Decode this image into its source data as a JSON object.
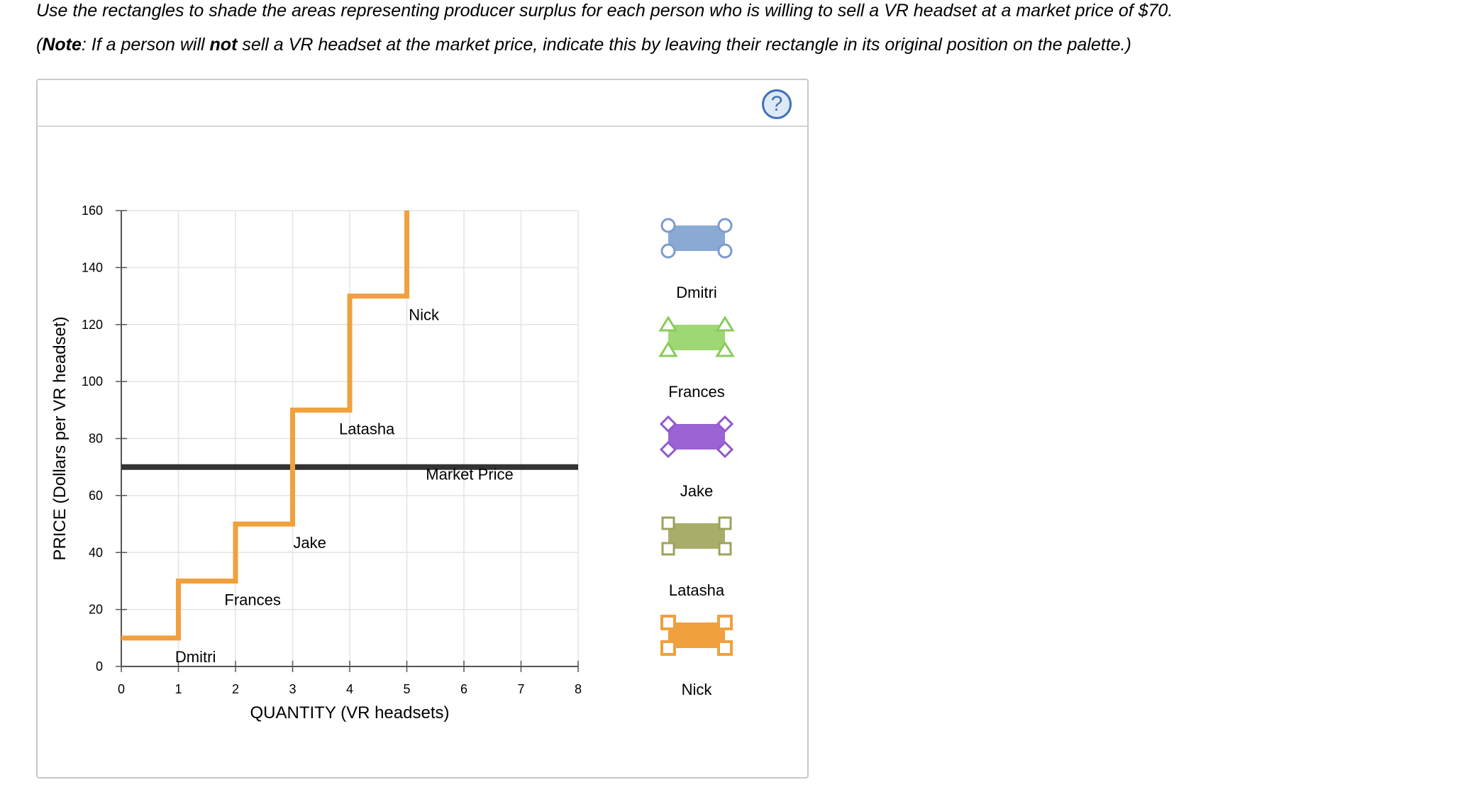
{
  "instructions": {
    "line1": "Use the rectangles to shade the areas representing producer surplus for each person who is willing to sell a VR headset at a market price of $70.",
    "line2_open": "(",
    "line2_note": "Note",
    "line2_mid": ": If a person will ",
    "line2_not": "not",
    "line2_end": " sell a VR headset at the market price, indicate this by leaving their rectangle in its original position on the palette.)"
  },
  "help_button": {
    "label": "?"
  },
  "chart_data": {
    "type": "line",
    "xlabel": "QUANTITY (VR headsets)",
    "ylabel": "PRICE (Dollars per VR headset)",
    "xlim": [
      0,
      8
    ],
    "ylim": [
      0,
      160
    ],
    "x_ticks": [
      0,
      1,
      2,
      3,
      4,
      5,
      6,
      7,
      8
    ],
    "y_ticks": [
      0,
      20,
      40,
      60,
      80,
      100,
      120,
      140,
      160
    ],
    "grid": true,
    "supply_steps": [
      {
        "name": "Dmitri",
        "x_start": 0,
        "x_end": 1,
        "price": 10
      },
      {
        "name": "Frances",
        "x_start": 1,
        "x_end": 2,
        "price": 30
      },
      {
        "name": "Jake",
        "x_start": 2,
        "x_end": 3,
        "price": 50
      },
      {
        "name": "Latasha",
        "x_start": 3,
        "x_end": 4,
        "price": 90
      },
      {
        "name": "Nick",
        "x_start": 4,
        "x_end": 5,
        "price": 130
      }
    ],
    "supply_final_vertical": {
      "x": 5,
      "y_from": 130,
      "y_to": 160
    },
    "market_price": {
      "label": "Market Price",
      "value": 70
    },
    "annotations": [
      {
        "text": "Dmitri",
        "x": 1.3,
        "y": 10
      },
      {
        "text": "Frances",
        "x": 2.3,
        "y": 30
      },
      {
        "text": "Jake",
        "x": 3.3,
        "y": 50
      },
      {
        "text": "Latasha",
        "x": 4.3,
        "y": 90
      },
      {
        "text": "Nick",
        "x": 5.3,
        "y": 130
      },
      {
        "text": "Market Price",
        "x": 6.1,
        "y": 74
      }
    ],
    "colors": {
      "supply": "#f0a03c",
      "market_price": "#333333",
      "grid": "#e4e4e4"
    }
  },
  "palette": [
    {
      "label": "Dmitri",
      "fill": "#8aaad4",
      "stroke": "#7b9ccf",
      "handle": "circle"
    },
    {
      "label": "Frances",
      "fill": "#9ed774",
      "stroke": "#8acb5c",
      "handle": "triangle"
    },
    {
      "label": "Jake",
      "fill": "#9b63d3",
      "stroke": "#9457cf",
      "handle": "diamond"
    },
    {
      "label": "Latasha",
      "fill": "#a8ad6a",
      "stroke": "#9ea25c",
      "handle": "square"
    },
    {
      "label": "Nick",
      "fill": "#f0a03c",
      "stroke": "#f0a03c",
      "handle": "square-outline"
    }
  ]
}
